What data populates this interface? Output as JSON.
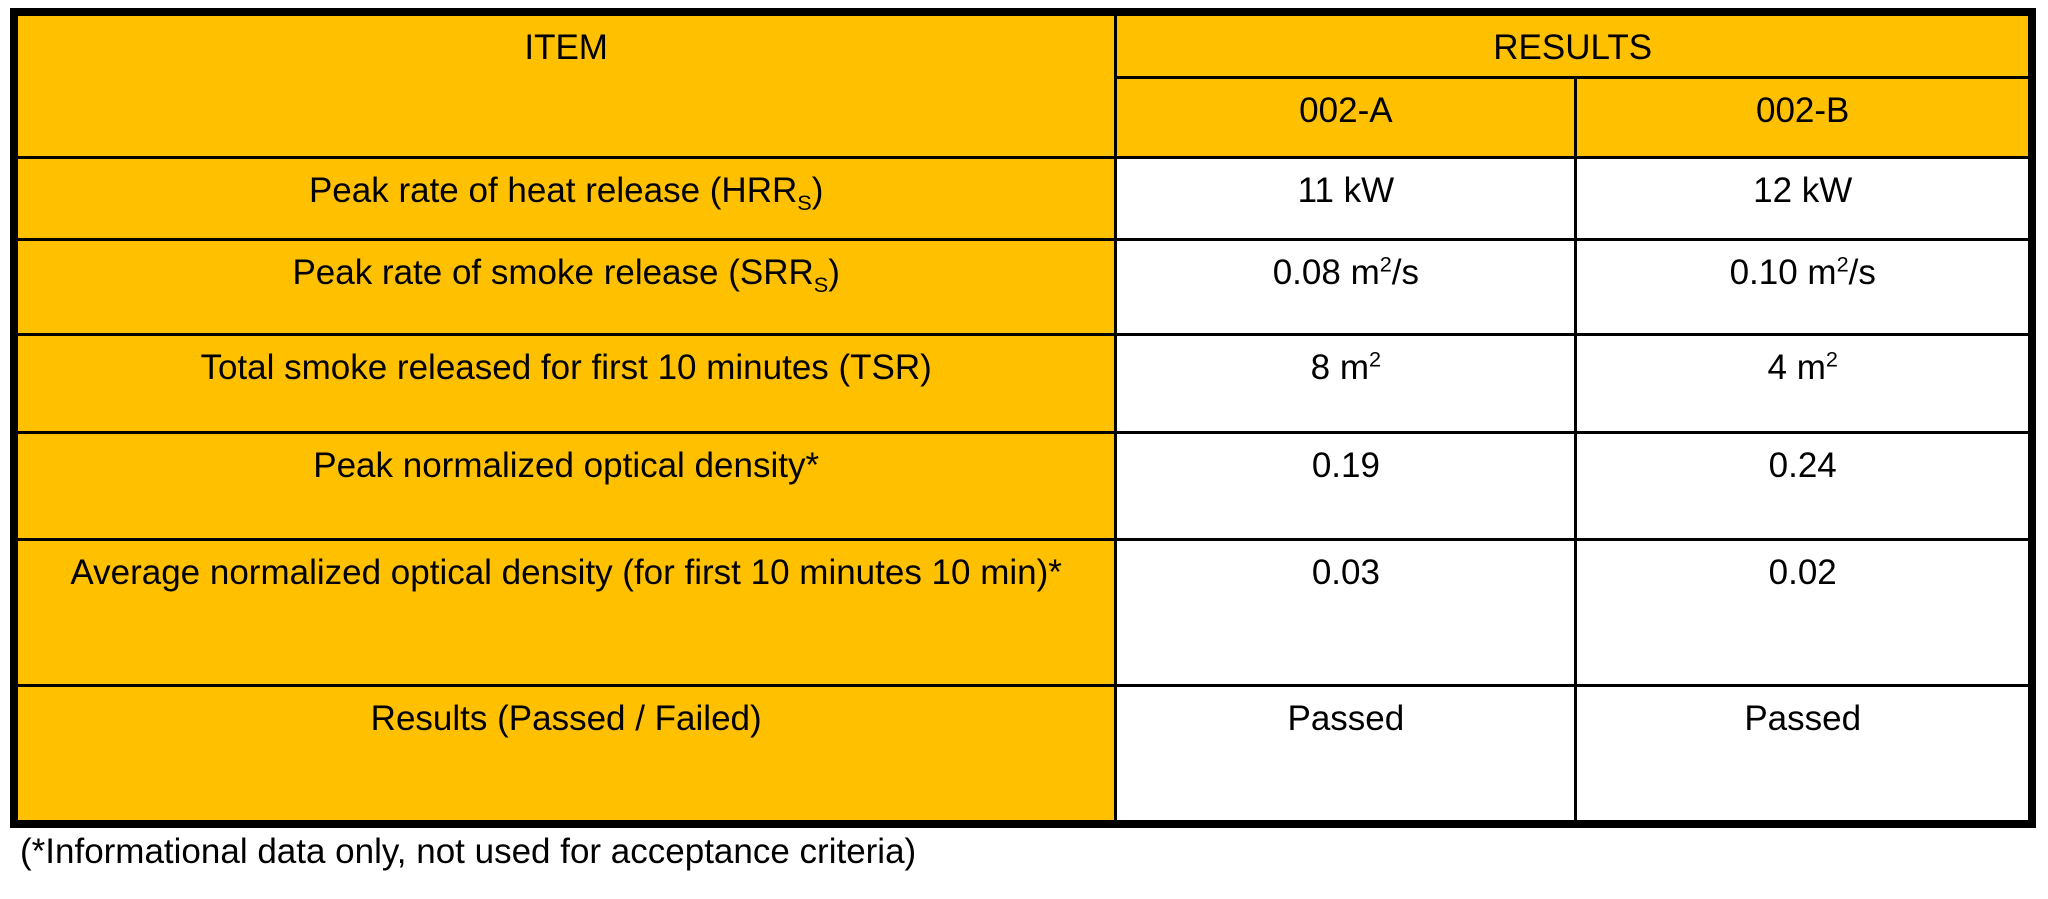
{
  "table": {
    "header": {
      "item_label": "ITEM",
      "results_label": "RESULTS",
      "col_a": "002-A",
      "col_b": "002-B"
    },
    "rows": [
      {
        "item": {
          "pre": "Peak rate of heat release (HRR",
          "sub": "S",
          "post": ")"
        },
        "a": {
          "pre": "11 kW"
        },
        "b": {
          "pre": "12 kW"
        }
      },
      {
        "item": {
          "pre": "Peak rate of smoke release (SRR",
          "sub": "S",
          "post": ")"
        },
        "a": {
          "pre": "0.08 m",
          "sup": "2",
          "post": "/s"
        },
        "b": {
          "pre": "0.10 m",
          "sup": "2",
          "post": "/s"
        }
      },
      {
        "item": {
          "pre": "Total smoke released for first 10 minutes (TSR)"
        },
        "a": {
          "pre": "8 m",
          "sup": "2"
        },
        "b": {
          "pre": "4 m",
          "sup": "2"
        }
      },
      {
        "item": {
          "pre": "Peak normalized optical density*"
        },
        "a": {
          "pre": "0.19"
        },
        "b": {
          "pre": "0.24"
        }
      },
      {
        "item": {
          "pre": "Average normalized optical density (for first 10 minutes 10 min)*"
        },
        "a": {
          "pre": "0.03"
        },
        "b": {
          "pre": "0.02"
        }
      },
      {
        "item": {
          "pre": "Results (Passed / Failed)"
        },
        "a": {
          "pre": "Passed"
        },
        "b": {
          "pre": "Passed"
        }
      }
    ],
    "footnote": "(*Informational data only, not used for acceptance criteria)",
    "colors": {
      "header_bg": "#FFC000",
      "border": "#000000",
      "cell_bg": "#FFFFFF",
      "text": "#000000"
    }
  }
}
